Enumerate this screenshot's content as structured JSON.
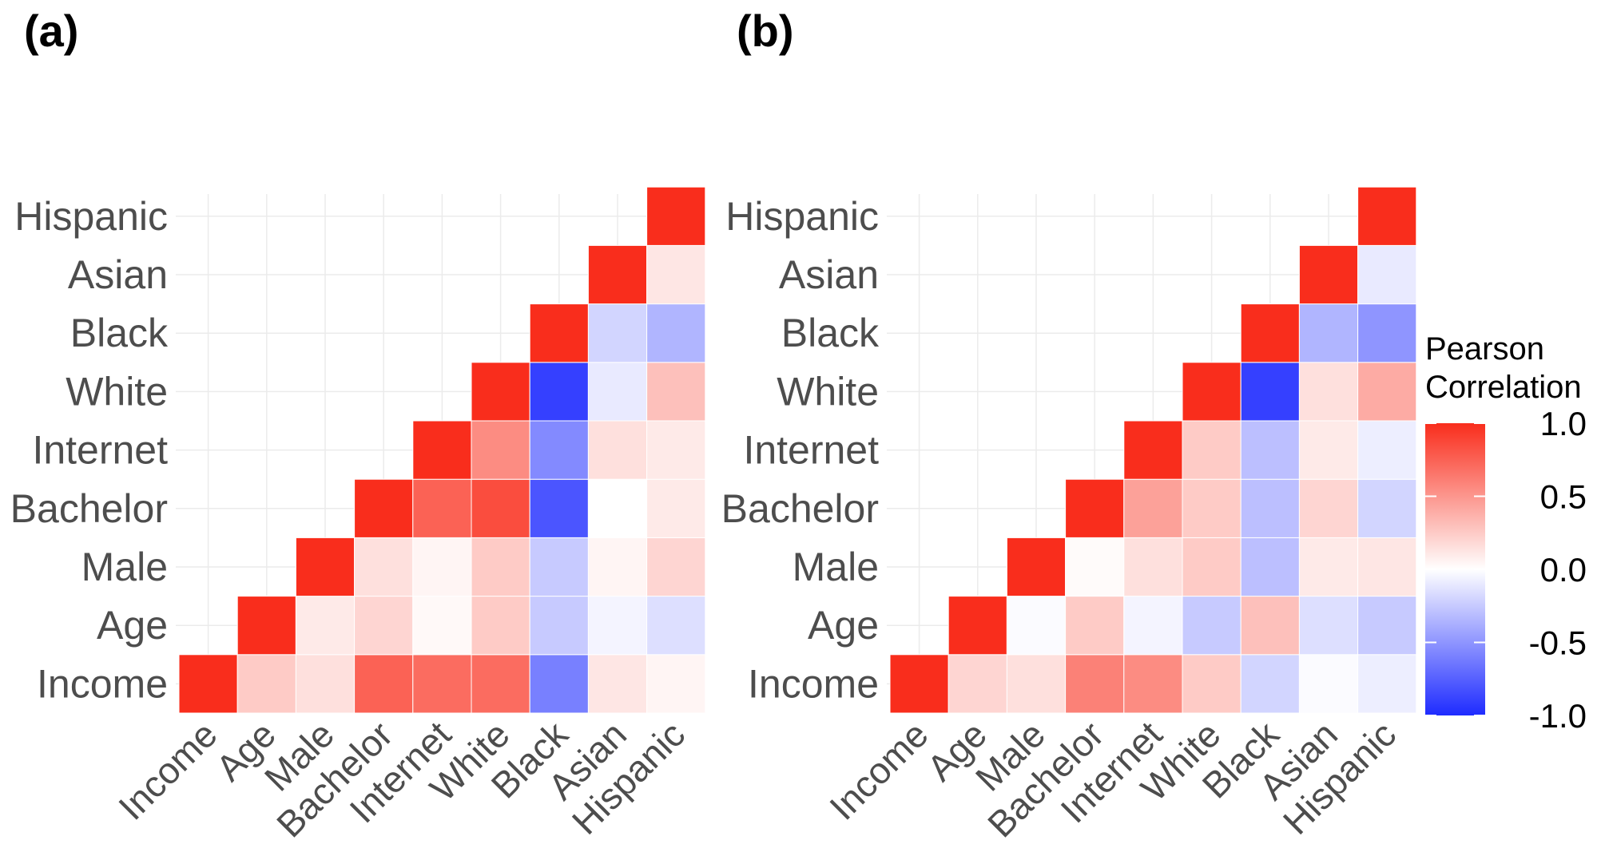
{
  "chart_data": [
    {
      "type": "heatmap",
      "panel_label": "(a)",
      "variables": [
        "Income",
        "Age",
        "Male",
        "Bachelor",
        "Internet",
        "White",
        "Black",
        "Asian",
        "Hispanic"
      ],
      "lower_triangle_shown": false,
      "matrix": [
        [
          1.0,
          0.25,
          0.15,
          0.75,
          0.7,
          0.7,
          -0.6,
          0.12,
          0.05
        ],
        [
          0.25,
          1.0,
          0.1,
          0.2,
          0.03,
          0.25,
          -0.25,
          -0.05,
          -0.15
        ],
        [
          0.15,
          0.1,
          1.0,
          0.15,
          0.05,
          0.25,
          -0.25,
          0.05,
          0.2
        ],
        [
          0.75,
          0.2,
          0.15,
          1.0,
          0.75,
          0.85,
          -0.8,
          0.0,
          0.1
        ],
        [
          0.7,
          0.03,
          0.05,
          0.75,
          1.0,
          0.55,
          -0.55,
          0.15,
          0.1
        ],
        [
          0.7,
          0.25,
          0.25,
          0.85,
          0.55,
          1.0,
          -0.9,
          -0.1,
          0.3
        ],
        [
          -0.6,
          -0.25,
          -0.25,
          -0.8,
          -0.55,
          -0.9,
          1.0,
          -0.2,
          -0.35
        ],
        [
          0.12,
          -0.05,
          0.05,
          0.0,
          0.15,
          -0.1,
          -0.2,
          1.0,
          0.12
        ],
        [
          0.05,
          -0.15,
          0.2,
          0.1,
          0.1,
          0.3,
          -0.35,
          0.12,
          1.0
        ]
      ]
    },
    {
      "type": "heatmap",
      "panel_label": "(b)",
      "variables": [
        "Income",
        "Age",
        "Male",
        "Bachelor",
        "Internet",
        "White",
        "Black",
        "Asian",
        "Hispanic"
      ],
      "lower_triangle_shown": false,
      "matrix": [
        [
          1.0,
          0.2,
          0.15,
          0.6,
          0.55,
          0.25,
          -0.2,
          -0.02,
          -0.08
        ],
        [
          0.2,
          1.0,
          -0.02,
          0.25,
          -0.05,
          -0.25,
          0.3,
          -0.15,
          -0.25
        ],
        [
          0.15,
          -0.02,
          1.0,
          0.02,
          0.15,
          0.25,
          -0.3,
          0.1,
          0.12
        ],
        [
          0.6,
          0.25,
          0.02,
          1.0,
          0.45,
          0.25,
          -0.3,
          0.2,
          -0.2
        ],
        [
          0.55,
          -0.05,
          0.15,
          0.45,
          1.0,
          0.25,
          -0.3,
          0.1,
          -0.08
        ],
        [
          0.25,
          -0.25,
          0.25,
          0.25,
          0.25,
          1.0,
          -0.9,
          0.15,
          0.4
        ],
        [
          -0.2,
          0.3,
          -0.3,
          -0.3,
          -0.3,
          -0.9,
          1.0,
          -0.35,
          -0.5
        ],
        [
          -0.02,
          -0.15,
          0.1,
          0.2,
          0.1,
          0.15,
          -0.35,
          1.0,
          -0.1
        ],
        [
          -0.08,
          -0.25,
          0.12,
          -0.2,
          -0.08,
          0.4,
          -0.5,
          -0.1,
          1.0
        ]
      ]
    }
  ],
  "legend": {
    "title_line1": "Pearson",
    "title_line2": "Correlation",
    "ticks": [
      "1.0",
      "0.5",
      "0.0",
      "-0.5",
      "-1.0"
    ],
    "tick_values": [
      1.0,
      0.5,
      0.0,
      -0.5,
      -1.0
    ],
    "range": [
      -1.0,
      1.0
    ],
    "colors": {
      "low": "#1e2bff",
      "mid": "#ffffff",
      "high": "#f92d1c"
    }
  }
}
